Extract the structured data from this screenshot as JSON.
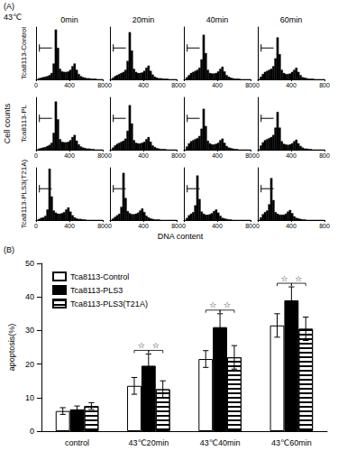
{
  "chart_data": [
    {
      "panel_label": "(A)",
      "type": "histogram",
      "temperature": "43℃",
      "columns": [
        "0min",
        "20min",
        "40min",
        "60min"
      ],
      "rows": [
        "Tca8113-Control",
        "Tca8113-PL",
        "Tca8113-PLS3(T21A)"
      ],
      "xlabel": "DNA content",
      "ylabel": "Cell counts",
      "xlim": [
        0,
        800
      ],
      "xticks": [
        0,
        400,
        800
      ],
      "ylim": [
        0,
        100
      ],
      "tick_labels": "x",
      "color": "#000000",
      "gate": [
        40,
        190
      ],
      "bins": [
        0,
        25,
        50,
        75,
        100,
        125,
        150,
        175,
        200,
        225,
        250,
        275,
        300,
        325,
        350,
        375,
        400,
        425,
        450,
        475,
        500,
        525,
        550,
        575,
        600,
        625,
        650,
        675,
        700,
        725,
        750,
        775,
        800
      ],
      "counts": [
        [
          [
            0,
            2,
            3,
            4,
            5,
            6,
            8,
            12,
            30,
            95,
            60,
            20,
            15,
            14,
            14,
            15,
            18,
            25,
            30,
            18,
            10,
            6,
            4,
            3,
            2,
            2,
            1,
            1,
            1,
            0,
            0,
            0
          ],
          [
            0,
            3,
            6,
            8,
            10,
            12,
            14,
            18,
            35,
            90,
            55,
            20,
            14,
            12,
            12,
            13,
            16,
            22,
            26,
            16,
            9,
            5,
            3,
            2,
            2,
            1,
            1,
            1,
            0,
            0,
            0,
            0
          ],
          [
            0,
            4,
            8,
            12,
            14,
            16,
            18,
            22,
            38,
            85,
            50,
            18,
            12,
            11,
            11,
            12,
            15,
            20,
            24,
            15,
            8,
            5,
            3,
            2,
            1,
            1,
            1,
            0,
            0,
            0,
            0,
            0
          ],
          [
            0,
            5,
            10,
            14,
            16,
            18,
            20,
            25,
            40,
            80,
            48,
            18,
            12,
            10,
            10,
            11,
            14,
            18,
            22,
            14,
            8,
            4,
            3,
            2,
            1,
            1,
            1,
            0,
            0,
            0,
            0,
            0
          ]
        ],
        [
          [
            0,
            2,
            3,
            4,
            5,
            7,
            9,
            13,
            32,
            92,
            58,
            20,
            15,
            14,
            14,
            15,
            18,
            24,
            28,
            17,
            10,
            6,
            4,
            3,
            2,
            2,
            1,
            1,
            0,
            0,
            0,
            0
          ],
          [
            0,
            4,
            8,
            11,
            13,
            15,
            17,
            21,
            36,
            85,
            50,
            18,
            13,
            12,
            12,
            13,
            15,
            20,
            24,
            15,
            8,
            5,
            3,
            2,
            1,
            1,
            1,
            0,
            0,
            0,
            0,
            0
          ],
          [
            0,
            6,
            12,
            16,
            18,
            20,
            22,
            26,
            40,
            78,
            45,
            17,
            12,
            10,
            10,
            11,
            13,
            18,
            21,
            13,
            7,
            4,
            3,
            2,
            1,
            1,
            0,
            0,
            0,
            0,
            0,
            0
          ],
          [
            0,
            8,
            14,
            18,
            20,
            22,
            24,
            28,
            42,
            72,
            42,
            16,
            11,
            10,
            9,
            10,
            12,
            16,
            19,
            12,
            7,
            4,
            2,
            2,
            1,
            1,
            0,
            0,
            0,
            0,
            0,
            0
          ]
        ],
        [
          [
            0,
            2,
            4,
            5,
            8,
            20,
            98,
            45,
            18,
            14,
            12,
            12,
            13,
            15,
            20,
            24,
            16,
            9,
            5,
            3,
            2,
            2,
            1,
            1,
            0,
            0,
            0,
            0,
            0,
            0,
            0,
            0
          ],
          [
            0,
            3,
            6,
            9,
            12,
            25,
            90,
            42,
            17,
            13,
            11,
            11,
            12,
            14,
            18,
            22,
            15,
            8,
            5,
            3,
            2,
            1,
            1,
            1,
            0,
            0,
            0,
            0,
            0,
            0,
            0,
            0
          ],
          [
            0,
            4,
            9,
            12,
            15,
            28,
            85,
            40,
            16,
            12,
            10,
            10,
            11,
            13,
            17,
            20,
            14,
            8,
            4,
            3,
            2,
            1,
            1,
            0,
            0,
            0,
            0,
            0,
            0,
            0,
            0,
            0
          ],
          [
            0,
            5,
            11,
            15,
            18,
            30,
            80,
            38,
            15,
            12,
            10,
            10,
            10,
            12,
            16,
            19,
            13,
            7,
            4,
            3,
            2,
            1,
            1,
            0,
            0,
            0,
            0,
            0,
            0,
            0,
            0,
            0
          ]
        ]
      ]
    },
    {
      "panel_label": "(B)",
      "type": "bar",
      "categories": [
        "control",
        "43℃20min",
        "43℃40min",
        "43℃60min"
      ],
      "ylabel": "apoptosis(%)",
      "ylim": [
        0,
        50
      ],
      "yticks": [
        0,
        10,
        20,
        30,
        40,
        50
      ],
      "grid": false,
      "legend": "upper left",
      "series": [
        {
          "name": "Tca8113-Control",
          "color": "#ffffff",
          "values": [
            6,
            13.5,
            21.5,
            31.5
          ],
          "errors": [
            1,
            2.5,
            2.5,
            3.5
          ]
        },
        {
          "name": "Tca8113-PLS3",
          "color": "#000000",
          "values": [
            6.5,
            19.5,
            31,
            39
          ],
          "errors": [
            1,
            3.5,
            4,
            4
          ]
        },
        {
          "name": "Tca8113-PLS3(T21A)",
          "color": "#ffffff",
          "marker": "striped",
          "values": [
            7.5,
            12.5,
            22,
            30.5
          ],
          "errors": [
            1,
            2.5,
            3.5,
            3.5
          ]
        }
      ],
      "significance": [
        {
          "category": "43℃20min",
          "between": [
            "Tca8113-Control",
            "Tca8113-PLS3"
          ],
          "label": "☆"
        },
        {
          "category": "43℃20min",
          "between": [
            "Tca8113-PLS3",
            "Tca8113-PLS3(T21A)"
          ],
          "label": "☆"
        },
        {
          "category": "43℃40min",
          "between": [
            "Tca8113-Control",
            "Tca8113-PLS3"
          ],
          "label": "☆"
        },
        {
          "category": "43℃40min",
          "between": [
            "Tca8113-PLS3",
            "Tca8113-PLS3(T21A)"
          ],
          "label": "☆"
        },
        {
          "category": "43℃60min",
          "between": [
            "Tca8113-Control",
            "Tca8113-PLS3"
          ],
          "label": "☆"
        },
        {
          "category": "43℃60min",
          "between": [
            "Tca8113-PLS3",
            "Tca8113-PLS3(T21A)"
          ],
          "label": "☆"
        }
      ]
    }
  ]
}
